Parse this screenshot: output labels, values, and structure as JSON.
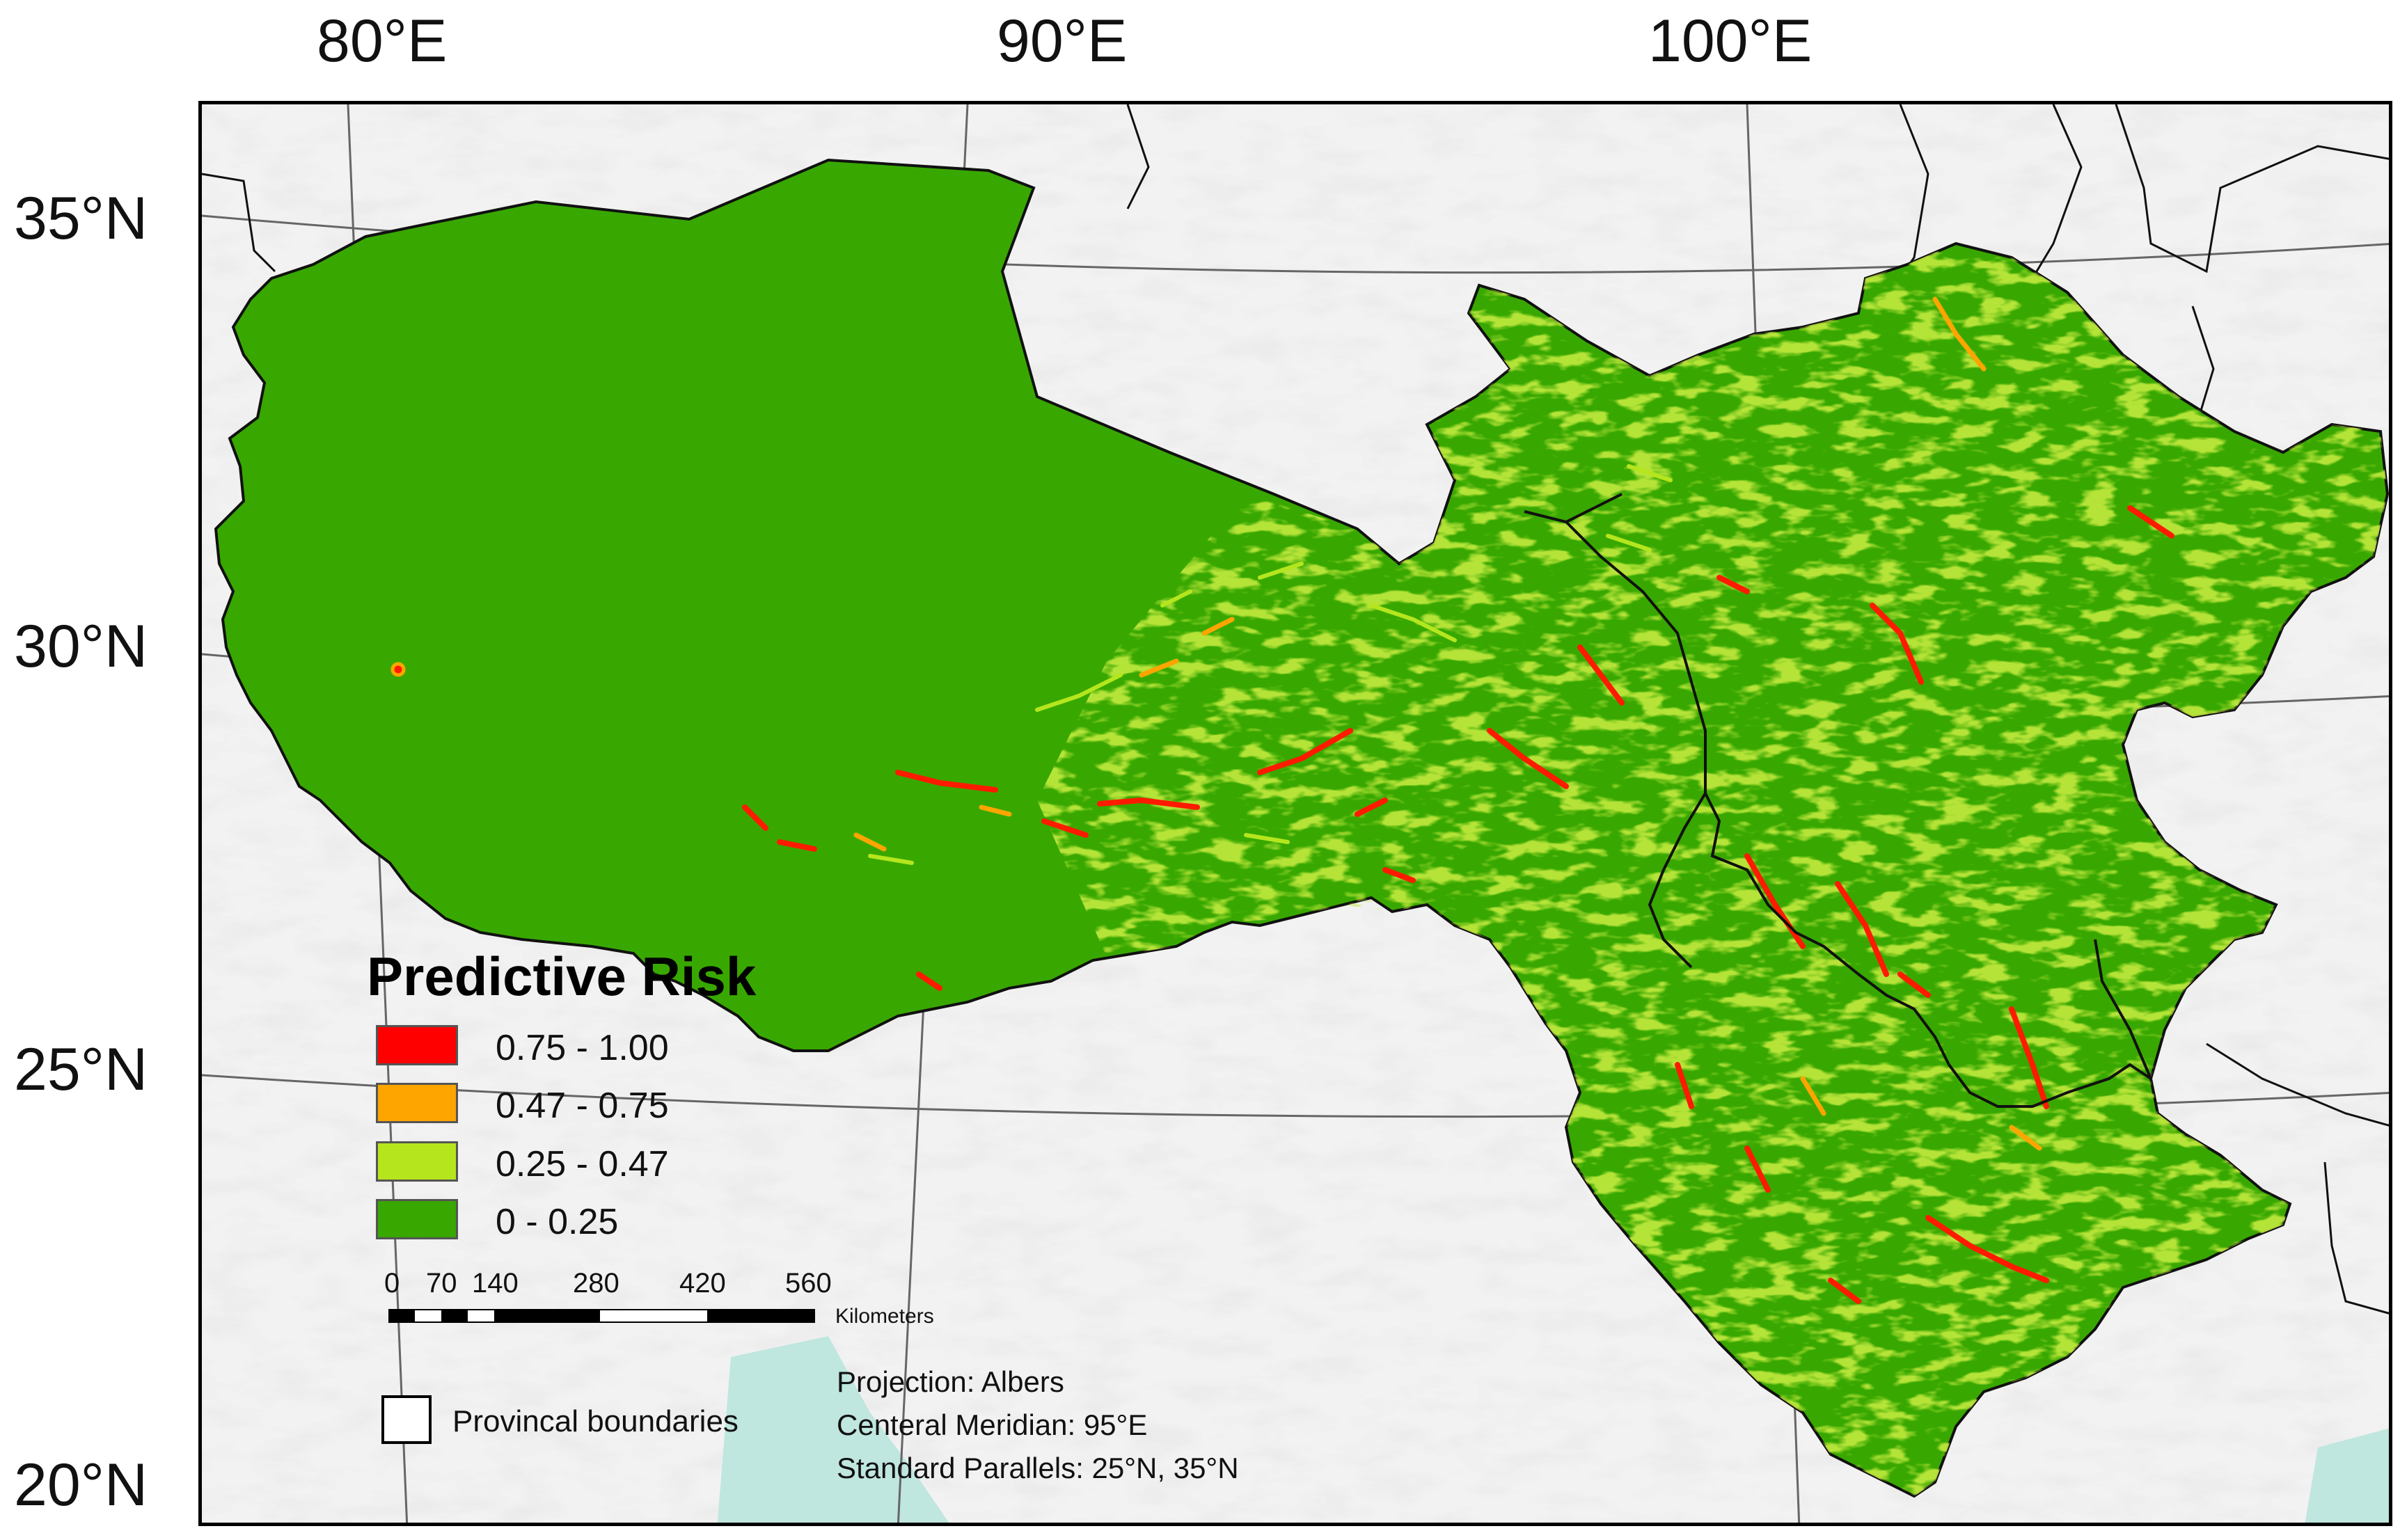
{
  "axes": {
    "longitude_labels": [
      "80°E",
      "90°E",
      "100°E"
    ],
    "latitude_labels": [
      "35°N",
      "30°N",
      "25°N",
      "20°N"
    ]
  },
  "legend": {
    "title": "Predictive Risk",
    "classes": [
      {
        "label": "0.75 - 1.00",
        "color": "#ff0000"
      },
      {
        "label": "0.47 - 0.75",
        "color": "#ffa500"
      },
      {
        "label": "0.25 - 0.47",
        "color": "#b5e61d"
      },
      {
        "label": "0 - 0.25",
        "color": "#38a800"
      }
    ]
  },
  "scale_bar": {
    "ticks": [
      "0",
      "70",
      "140",
      "280",
      "420",
      "560"
    ],
    "unit": "Kilometers"
  },
  "boundary_legend": {
    "label": "Provincal boundaries"
  },
  "projection_notes": [
    "Projection: Albers",
    "Centeral Meridian: 95°E",
    "Standard Parallels: 25°N, 35°N"
  ],
  "colors": {
    "background_terrain": "#eeeeee",
    "water": "#bfe6df",
    "base_risk": "#38a800",
    "frame": "#000000"
  }
}
